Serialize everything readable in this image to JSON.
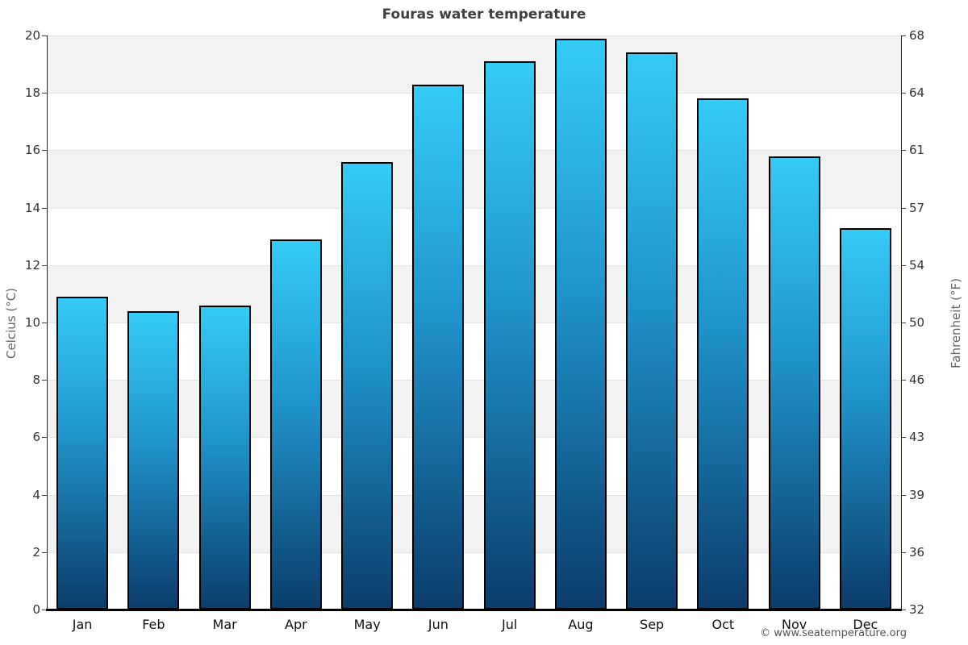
{
  "chart_data": {
    "type": "bar",
    "title": "Fouras water temperature",
    "categories": [
      "Jan",
      "Feb",
      "Mar",
      "Apr",
      "May",
      "Jun",
      "Jul",
      "Aug",
      "Sep",
      "Oct",
      "Nov",
      "Dec"
    ],
    "values": [
      10.9,
      10.4,
      10.6,
      12.9,
      15.6,
      18.3,
      19.1,
      19.9,
      19.4,
      17.8,
      15.8,
      13.3
    ],
    "ylabel_left": "Celcius (°C)",
    "ylabel_right": "Fahrenheit (°F)",
    "ylim": [
      0,
      20
    ],
    "yticks_celsius": [
      0,
      2,
      4,
      6,
      8,
      10,
      12,
      14,
      16,
      18,
      20
    ],
    "yticks_fahrenheit_labels": [
      "32",
      "36",
      "39",
      "43",
      "46",
      "50",
      "54",
      "57",
      "61",
      "64",
      "68"
    ],
    "legend": "none",
    "grid": "horizontal gridlines every 2°C with alternating background bands",
    "colors": {
      "bar_top": "#35cbf7",
      "bar_mid": "#1f93ca",
      "bar_bottom": "#0b3c6b",
      "bar_border": "#000000",
      "band_gray": "#f2f2f2",
      "band_white": "#ffffff",
      "gridline": "#e4e4e4",
      "axis_line": "#000000",
      "title_text": "#404040",
      "tick_text": "#333333",
      "axis_title_text": "#666666",
      "footer_text": "#555555"
    }
  },
  "footer": {
    "credit": "© www.seatemperature.org"
  }
}
